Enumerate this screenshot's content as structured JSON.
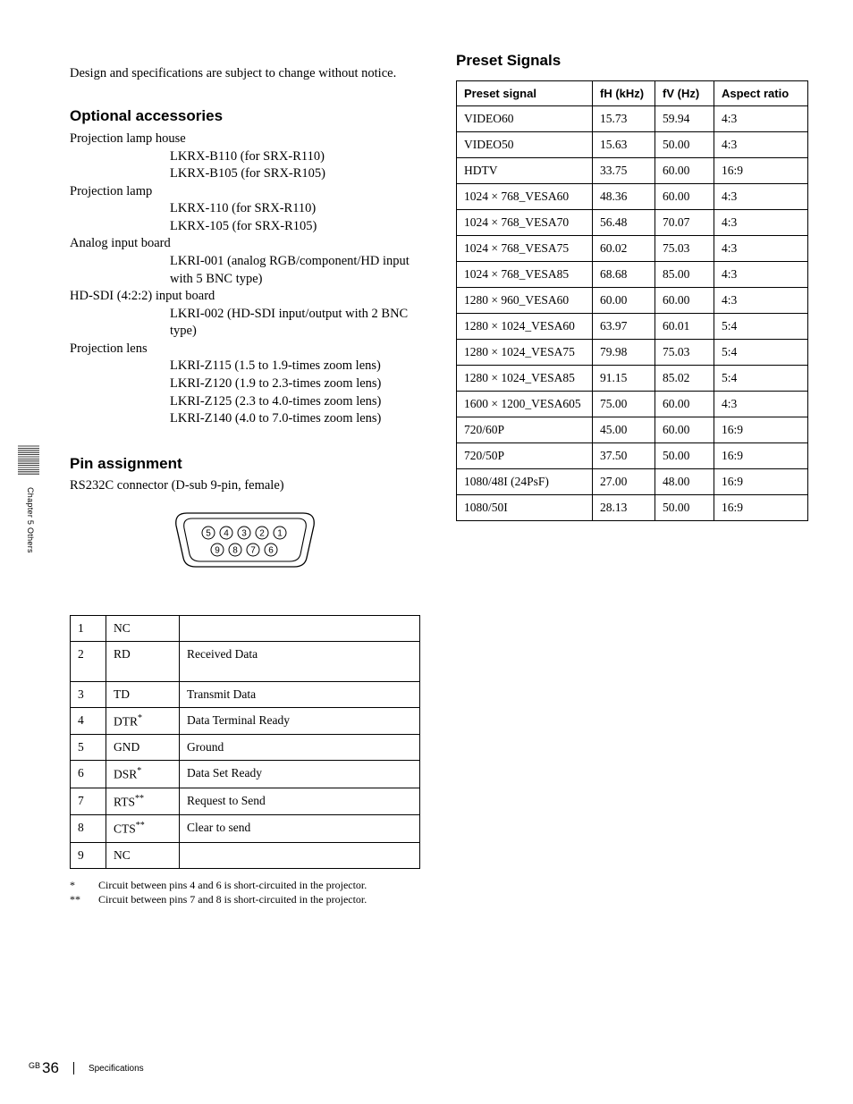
{
  "intro": "Design and specifications are subject to change without notice.",
  "sections": {
    "optional": {
      "heading": "Optional accessories",
      "items": [
        {
          "label": "Projection lamp house",
          "lines": [
            "LKRX-B110 (for SRX-R110)",
            "LKRX-B105 (for SRX-R105)"
          ]
        },
        {
          "label": "Projection lamp",
          "lines": [
            "LKRX-110 (for SRX-R110)",
            "LKRX-105 (for SRX-R105)"
          ]
        },
        {
          "label": "Analog input board",
          "lines": [
            "LKRI-001 (analog RGB/component/HD input with 5 BNC type)"
          ]
        },
        {
          "label": "HD-SDI (4:2:2) input board",
          "lines": [
            "LKRI-002 (HD-SDI input/output with 2 BNC type)"
          ]
        },
        {
          "label": "Projection lens",
          "lines": [
            "LKRI-Z115 (1.5 to 1.9-times zoom lens)",
            "LKRI-Z120 (1.9 to 2.3-times zoom lens)",
            "LKRI-Z125 (2.3 to 4.0-times zoom lens)",
            "LKRI-Z140 (4.0 to 7.0-times zoom lens)"
          ]
        }
      ]
    },
    "pin": {
      "heading": "Pin assignment",
      "sub": "RS232C connector (D-sub 9-pin, female)",
      "rows": [
        {
          "n": "1",
          "sig": "NC",
          "sup": "",
          "desc": ""
        },
        {
          "n": "2",
          "sig": "RD",
          "sup": "",
          "desc": "Received Data"
        },
        {
          "n": "3",
          "sig": "TD",
          "sup": "",
          "desc": "Transmit Data"
        },
        {
          "n": "4",
          "sig": "DTR",
          "sup": "*",
          "desc": "Data Terminal Ready"
        },
        {
          "n": "5",
          "sig": "GND",
          "sup": "",
          "desc": "Ground"
        },
        {
          "n": "6",
          "sig": "DSR",
          "sup": "*",
          "desc": "Data Set Ready"
        },
        {
          "n": "7",
          "sig": "RTS",
          "sup": "**",
          "desc": "Request to Send"
        },
        {
          "n": "8",
          "sig": "CTS",
          "sup": "**",
          "desc": "Clear to send"
        },
        {
          "n": "9",
          "sig": "NC",
          "sup": "",
          "desc": ""
        }
      ],
      "footnotes": [
        {
          "mark": "*",
          "text": "Circuit between pins 4 and 6 is short-circuited in the projector."
        },
        {
          "mark": "**",
          "text": "Circuit between pins 7 and 8 is short-circuited in the projector."
        }
      ]
    },
    "preset": {
      "heading": "Preset Signals",
      "columns": [
        "Preset signal",
        "fH (kHz)",
        "fV (Hz)",
        "Aspect ratio"
      ],
      "rows": [
        [
          "VIDEO60",
          "15.73",
          "59.94",
          "4:3"
        ],
        [
          "VIDEO50",
          "15.63",
          "50.00",
          "4:3"
        ],
        [
          "HDTV",
          "33.75",
          "60.00",
          "16:9"
        ],
        [
          "1024 × 768_VESA60",
          "48.36",
          "60.00",
          "4:3"
        ],
        [
          "1024 × 768_VESA70",
          "56.48",
          "70.07",
          "4:3"
        ],
        [
          "1024 × 768_VESA75",
          "60.02",
          "75.03",
          "4:3"
        ],
        [
          "1024 × 768_VESA85",
          "68.68",
          "85.00",
          "4:3"
        ],
        [
          "1280 × 960_VESA60",
          "60.00",
          "60.00",
          "4:3"
        ],
        [
          "1280 × 1024_VESA60",
          "63.97",
          "60.01",
          "5:4"
        ],
        [
          "1280 × 1024_VESA75",
          "79.98",
          "75.03",
          "5:4"
        ],
        [
          "1280 × 1024_VESA85",
          "91.15",
          "85.02",
          "5:4"
        ],
        [
          "1600 × 1200_VESA605",
          "75.00",
          "60.00",
          "4:3"
        ],
        [
          "720/60P",
          "45.00",
          "60.00",
          "16:9"
        ],
        [
          "720/50P",
          "37.50",
          "50.00",
          "16:9"
        ],
        [
          "1080/48I (24PsF)",
          "27.00",
          "48.00",
          "16:9"
        ],
        [
          "1080/50I",
          "28.13",
          "50.00",
          "16:9"
        ]
      ]
    }
  },
  "side": {
    "text": "Chapter 5  Others"
  },
  "footer": {
    "gb": "GB",
    "page": "36",
    "label": "Specifications"
  }
}
